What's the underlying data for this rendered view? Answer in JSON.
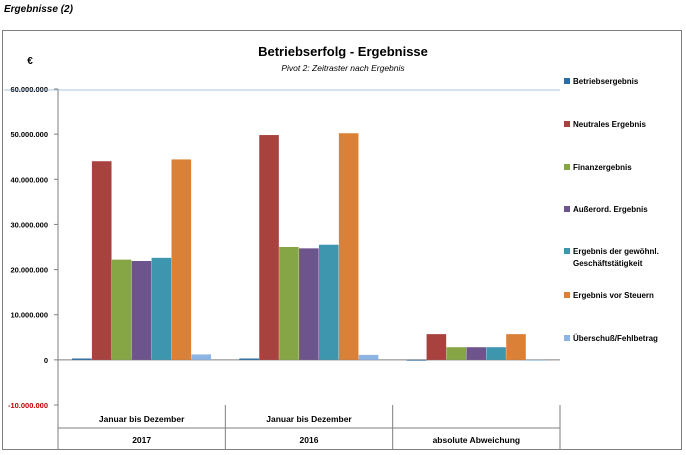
{
  "page_title": "Ergebnisse (2)",
  "chart_data": {
    "type": "bar",
    "title": "Betriebserfolg - Ergebnisse",
    "subtitle": "Pivot 2: Zeitraster nach Ergebnis",
    "ylabel": "€",
    "ylim": [
      -10000000,
      60000000
    ],
    "yticks": [
      60000000,
      50000000,
      40000000,
      30000000,
      20000000,
      10000000,
      0,
      -10000000
    ],
    "ytick_labels": [
      "60.000.000",
      "50.000.000",
      "40.000.000",
      "30.000.000",
      "20.000.000",
      "10.000.000",
      "0",
      "-10.000.000"
    ],
    "grid": false,
    "legend_position": "right",
    "categories": [
      {
        "line1": "Januar bis Dezember",
        "line2": "2017"
      },
      {
        "line1": "Januar bis Dezember",
        "line2": "2016"
      },
      {
        "line1": "",
        "line2": "absolute Abweichung"
      }
    ],
    "series": [
      {
        "name": "Betriebsergebnis",
        "color": "#2e6da4",
        "values": [
          300000,
          300000,
          0
        ]
      },
      {
        "name": "Neutrales Ergebnis",
        "color": "#a8423f",
        "values": [
          44000000,
          49800000,
          5700000
        ]
      },
      {
        "name": "Finanzergebnis",
        "color": "#86a544",
        "values": [
          22200000,
          25000000,
          2800000
        ]
      },
      {
        "name": "Außerord. Ergebnis",
        "color": "#6e548d",
        "values": [
          21900000,
          24700000,
          2800000
        ]
      },
      {
        "name": "Ergebnis der gewöhnl. Geschäftstätigkeit",
        "color": "#3d96ae",
        "values": [
          22600000,
          25500000,
          2800000
        ]
      },
      {
        "name": "Ergebnis vor Steuern",
        "color": "#da8137",
        "values": [
          44400000,
          50200000,
          5700000
        ]
      },
      {
        "name": "Überschuß/Fehlbetrag",
        "color": "#8eb4e3",
        "values": [
          1200000,
          1100000,
          0
        ]
      }
    ]
  }
}
